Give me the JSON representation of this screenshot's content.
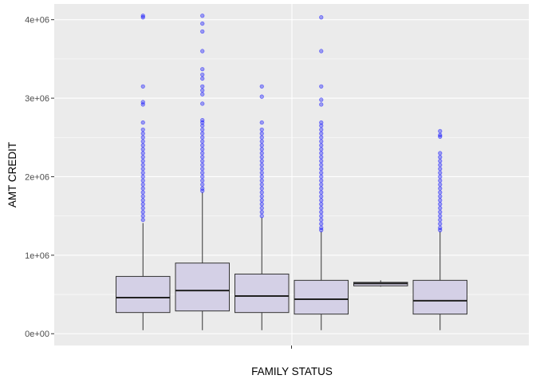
{
  "chart_data": {
    "type": "box",
    "title": "",
    "xlabel": "FAMILY STATUS",
    "ylabel": "AMT CREDIT",
    "ylim": [
      -150000,
      4200000
    ],
    "y_ticks": [
      {
        "value": 0,
        "label": "0e+00"
      },
      {
        "value": 1000000,
        "label": "1e+06"
      },
      {
        "value": 2000000,
        "label": "2e+06"
      },
      {
        "value": 3000000,
        "label": "3e+06"
      },
      {
        "value": 4000000,
        "label": "4e+06"
      }
    ],
    "x_tick_labels": [],
    "grid": true,
    "legend": "none",
    "colors": {
      "panel": "#ebebeb",
      "grid": "#ffffff",
      "box_fill": "#d4d0e6",
      "box_stroke": "#333333",
      "outlier": "#0000ff"
    },
    "boxes": [
      {
        "min": 45000,
        "q1": 270000,
        "median": 460000,
        "q3": 730000,
        "max": 1410000,
        "outliers": [
          1450000,
          1500000,
          1550000,
          1600000,
          1650000,
          1700000,
          1750000,
          1800000,
          1850000,
          1900000,
          1950000,
          2000000,
          2050000,
          2100000,
          2150000,
          2200000,
          2250000,
          2300000,
          2350000,
          2400000,
          2450000,
          2500000,
          2550000,
          2600000,
          2690000,
          2920000,
          2950000,
          3150000,
          4030000,
          4050000
        ]
      },
      {
        "min": 45000,
        "q1": 290000,
        "median": 550000,
        "q3": 900000,
        "max": 1800000,
        "outliers": [
          1820000,
          1850000,
          1900000,
          1950000,
          2000000,
          2050000,
          2100000,
          2150000,
          2200000,
          2250000,
          2300000,
          2350000,
          2400000,
          2450000,
          2500000,
          2550000,
          2600000,
          2650000,
          2690000,
          2720000,
          2930000,
          3050000,
          3100000,
          3150000,
          3250000,
          3300000,
          3370000,
          3600000,
          3850000,
          3950000,
          4050000
        ]
      },
      {
        "min": 45000,
        "q1": 270000,
        "median": 480000,
        "q3": 760000,
        "max": 1480000,
        "outliers": [
          1500000,
          1550000,
          1600000,
          1650000,
          1700000,
          1750000,
          1800000,
          1850000,
          1900000,
          1950000,
          2000000,
          2050000,
          2100000,
          2150000,
          2200000,
          2250000,
          2300000,
          2350000,
          2400000,
          2450000,
          2500000,
          2550000,
          2600000,
          2690000,
          3020000,
          3150000
        ]
      },
      {
        "min": 45000,
        "q1": 250000,
        "median": 440000,
        "q3": 680000,
        "max": 1300000,
        "outliers": [
          1320000,
          1350000,
          1400000,
          1450000,
          1500000,
          1550000,
          1600000,
          1650000,
          1700000,
          1750000,
          1800000,
          1850000,
          1900000,
          1950000,
          2000000,
          2050000,
          2100000,
          2150000,
          2200000,
          2250000,
          2300000,
          2350000,
          2400000,
          2450000,
          2500000,
          2550000,
          2600000,
          2650000,
          2690000,
          2920000,
          2980000,
          3150000,
          3600000,
          4030000
        ]
      },
      {
        "min": 600000,
        "q1": 610000,
        "median": 640000,
        "q3": 655000,
        "max": 680000,
        "outliers": []
      },
      {
        "min": 45000,
        "q1": 250000,
        "median": 420000,
        "q3": 680000,
        "max": 1300000,
        "outliers": [
          1320000,
          1350000,
          1400000,
          1450000,
          1500000,
          1550000,
          1600000,
          1650000,
          1700000,
          1750000,
          1800000,
          1850000,
          1900000,
          1950000,
          2000000,
          2050000,
          2100000,
          2150000,
          2200000,
          2250000,
          2300000,
          2510000,
          2530000,
          2580000
        ]
      }
    ]
  }
}
